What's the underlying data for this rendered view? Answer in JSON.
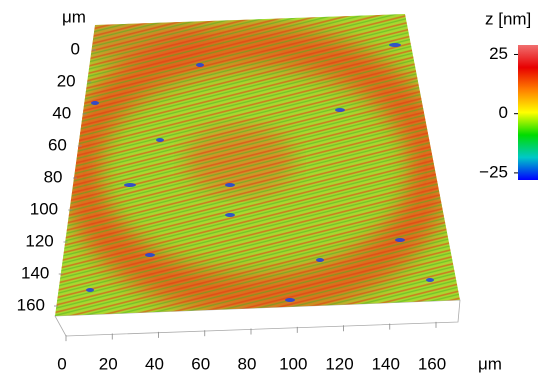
{
  "chart_data": {
    "type": "surface",
    "xlabel": "μm",
    "ylabel": "μm",
    "xlim": [
      0,
      160
    ],
    "xticks": [
      0,
      20,
      40,
      60,
      80,
      100,
      120,
      140,
      160
    ],
    "ylim": [
      0,
      160
    ],
    "yticks": [
      0,
      20,
      40,
      60,
      80,
      100,
      120,
      140,
      160
    ],
    "colorbar": {
      "label": "z [nm]",
      "zlim": [
        -28,
        29
      ],
      "zticks": [
        25,
        0,
        {
          "value": -25,
          "label": "−25"
        }
      ],
      "colors": [
        "#0000ff",
        "#00c8c8",
        "#00dc00",
        "#ffff00",
        "#ff8000",
        "#e80000",
        "#f07070"
      ]
    }
  }
}
